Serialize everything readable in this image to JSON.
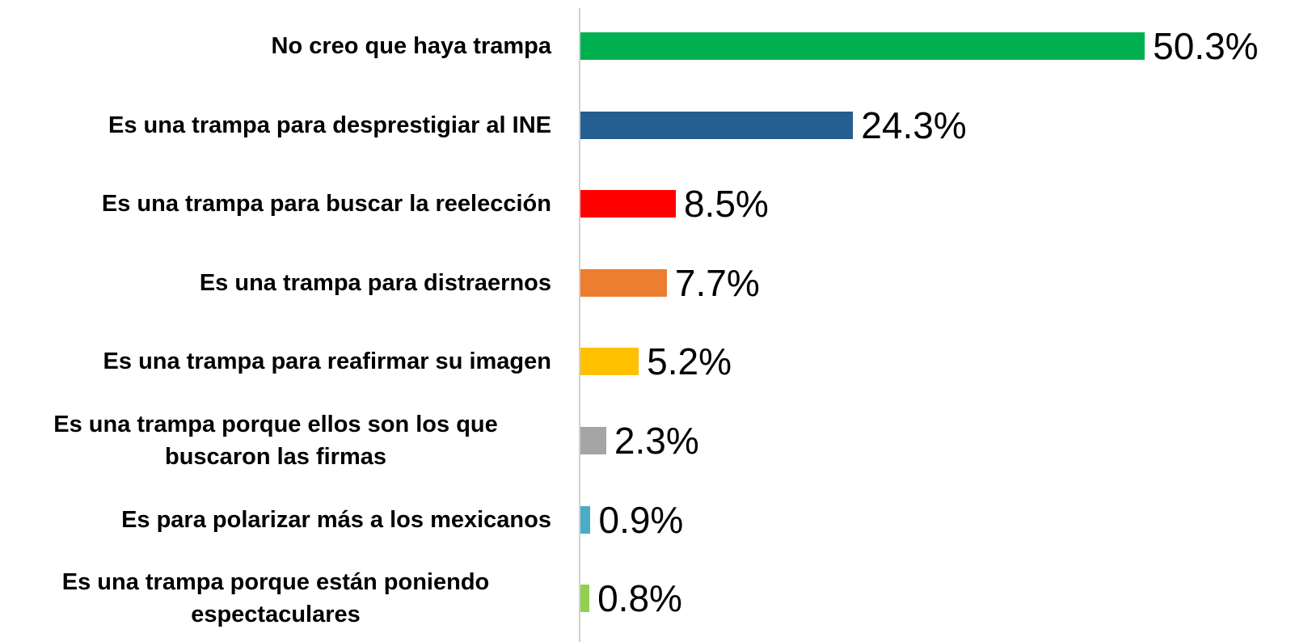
{
  "chart_data": {
    "type": "bar",
    "orientation": "horizontal",
    "categories": [
      "No creo que haya trampa",
      "Es una trampa para desprestigiar al INE",
      "Es una trampa para buscar la reelección",
      "Es una trampa para distraernos",
      "Es una trampa para reafirmar su imagen",
      "Es una trampa porque ellos son los que buscaron las firmas",
      "Es para polarizar más a los mexicanos",
      "Es una trampa porque están poniendo espectaculares"
    ],
    "values": [
      50.3,
      24.3,
      8.5,
      7.7,
      5.2,
      2.3,
      0.9,
      0.8
    ],
    "value_labels": [
      "50.3%",
      "24.3%",
      "8.5%",
      "7.7%",
      "5.2%",
      "2.3%",
      "0.9%",
      "0.8%"
    ],
    "colors": [
      "#00b050",
      "#255e91",
      "#ff0000",
      "#ed7d31",
      "#ffc000",
      "#a5a5a5",
      "#4bacc6",
      "#92d050"
    ]
  }
}
